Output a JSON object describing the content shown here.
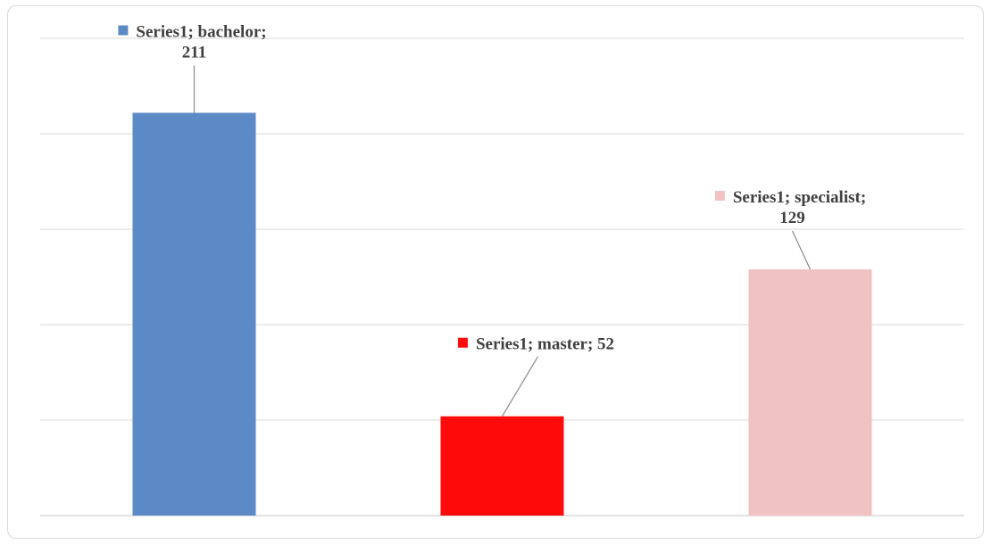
{
  "chart_data": {
    "type": "bar",
    "categories": [
      "bachelor",
      "master",
      "specialist"
    ],
    "series": [
      {
        "name": "Series1",
        "values": [
          211,
          52,
          129
        ]
      }
    ],
    "data_labels": [
      {
        "line1": "Series1; bachelor;",
        "line2": "211"
      },
      {
        "line1": "Series1; master; 52",
        "line2": ""
      },
      {
        "line1": "Series1; specialist;",
        "line2": "129"
      }
    ],
    "bar_colors": [
      "#5b8ac6",
      "#ff0b0b",
      "#f0c2c2"
    ],
    "gridline_color": "#d9d9d9",
    "leader_line_color": "#8c8c8c",
    "ylim": [
      0,
      250
    ],
    "grid": true,
    "legend": "none",
    "title": "",
    "xlabel": "",
    "ylabel": ""
  }
}
